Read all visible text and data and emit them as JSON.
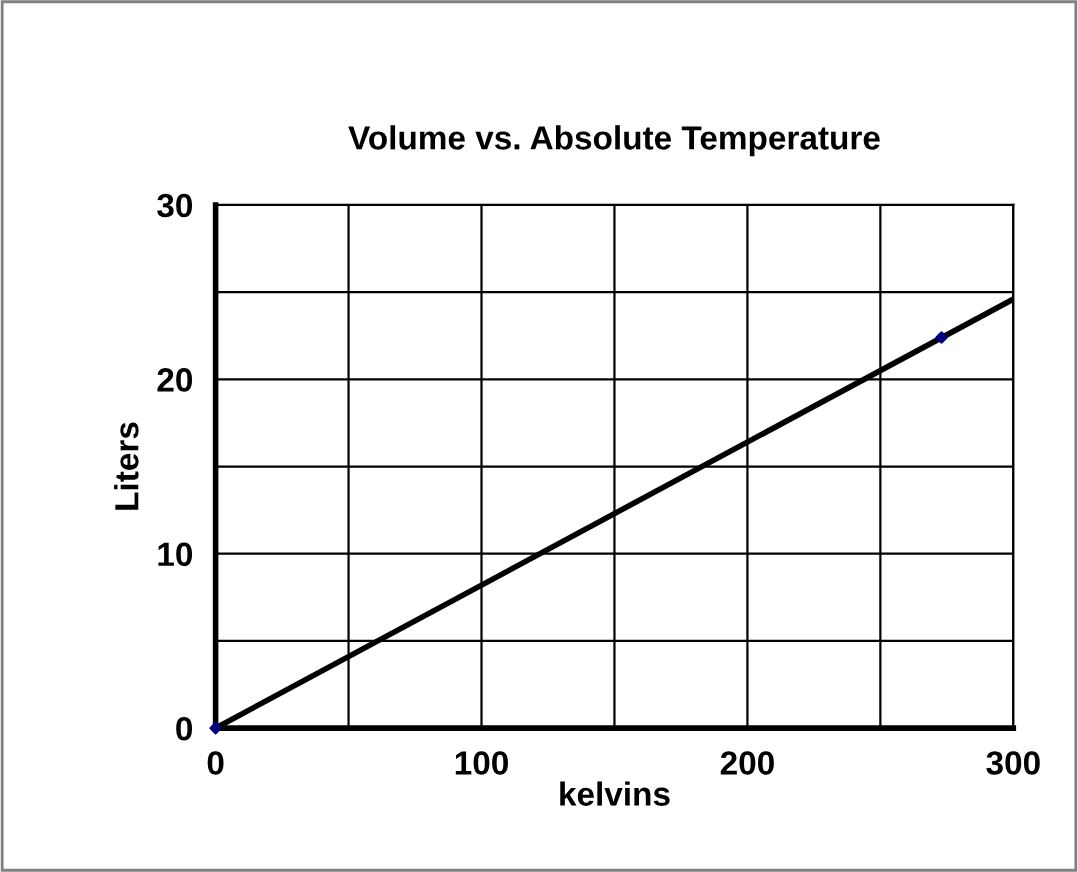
{
  "chart_data": {
    "type": "line",
    "title": "Volume vs. Absolute Temperature",
    "xlabel": "kelvins",
    "ylabel": "Liters",
    "series": [
      {
        "color": "#000000",
        "x": [
          0,
          300
        ],
        "values": [
          0,
          24.6
        ],
        "marker": "none"
      },
      {
        "type": "scatter",
        "color": "#000080",
        "x": [
          0,
          273
        ],
        "values": [
          0,
          22.4
        ],
        "marker": "diamond"
      }
    ],
    "xlim": [
      0,
      300
    ],
    "ylim": [
      0,
      30
    ],
    "xticks": [
      0,
      {
        "value": 50,
        "label": null
      },
      100,
      {
        "value": 150,
        "label": null
      },
      200,
      {
        "value": 250,
        "label": null
      },
      300
    ],
    "yticks": [
      0,
      {
        "value": 5,
        "label": null
      },
      10,
      {
        "value": 15,
        "label": null
      },
      20,
      {
        "value": 25,
        "label": null
      },
      30
    ],
    "grid": true,
    "legend": false
  }
}
